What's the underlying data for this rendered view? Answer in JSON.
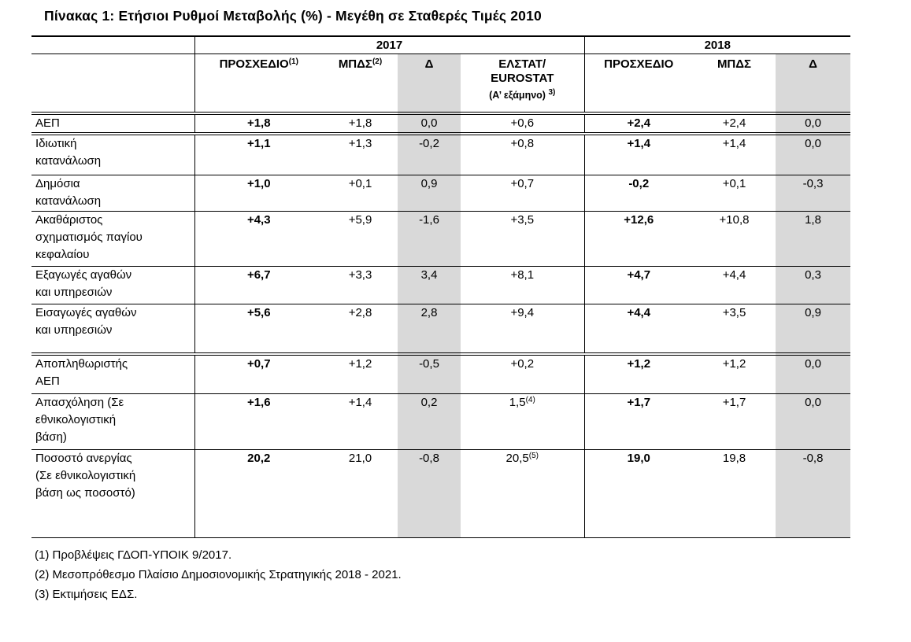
{
  "title": "Πίνακας 1: Ετήσιοι Ρυθμοί Μεταβολής (%) - Μεγέθη σε Σταθερές Τιμές 2010",
  "colors": {
    "shaded_column": "#d9d9d9",
    "border": "#000000",
    "background": "#ffffff"
  },
  "table": {
    "year_headers": [
      {
        "label": "2017",
        "span": 4
      },
      {
        "label": "2018",
        "span": 3
      }
    ],
    "column_headers": [
      {
        "label": "ΠΡΟΣΧΕΔΙΟ",
        "sup": "(1)",
        "emphasis": true
      },
      {
        "label": "ΜΠΔΣ",
        "sup": "(2)"
      },
      {
        "label": "Δ",
        "shaded": true
      },
      {
        "label": "ΕΛΣΤΑΤ/\nEUROSTAT",
        "sub_label": "(Α’ εξάμηνο)",
        "sub_sup": "3)"
      },
      {
        "label": "ΠΡΟΣΧΕΔΙΟ",
        "emphasis": true
      },
      {
        "label": "ΜΠΔΣ"
      },
      {
        "label": "Δ",
        "shaded": true
      }
    ],
    "rows": [
      {
        "label": "ΑΕΠ",
        "cells": [
          "+1,8",
          "+1,8",
          "0,0",
          "+0,6",
          "+2,4",
          "+2,4",
          "0,0"
        ]
      },
      {
        "label": "Ιδιωτική\nκατανάλωση",
        "cells": [
          "+1,1",
          "+1,3",
          "-0,2",
          "+0,8",
          "+1,4",
          "+1,4",
          "0,0"
        ]
      },
      {
        "label": "Δημόσια\nκατανάλωση",
        "cells": [
          "+1,0",
          "+0,1",
          "0,9",
          "+0,7",
          "-0,2",
          "+0,1",
          "-0,3"
        ]
      },
      {
        "label": "Ακαθάριστος\nσχηματισμός παγίου\nκεφαλαίου",
        "cells": [
          "+4,3",
          "+5,9",
          "-1,6",
          "+3,5",
          "+12,6",
          "+10,8",
          "1,8"
        ]
      },
      {
        "label": "Εξαγωγές αγαθών\nκαι υπηρεσιών",
        "cells": [
          "+6,7",
          "+3,3",
          "3,4",
          "+8,1",
          "+4,7",
          "+4,4",
          "0,3"
        ]
      },
      {
        "label": "Εισαγωγές αγαθών\nκαι υπηρεσιών",
        "cells": [
          "+5,6",
          "+2,8",
          "2,8",
          "+9,4",
          "+4,4",
          "+3,5",
          "0,9"
        ]
      },
      {
        "label": "Αποπληθωριστής\nΑΕΠ",
        "cells": [
          "+0,7",
          "+1,2",
          "-0,5",
          "+0,2",
          "+1,2",
          "+1,2",
          "0,0"
        ]
      },
      {
        "label": "Απασχόληση (Σε\nεθνικολογιστική\nβάση)",
        "cells": [
          "+1,6",
          "+1,4",
          "0,2",
          {
            "text": "1,5",
            "sup": "(4)"
          },
          "+1,7",
          "+1,7",
          "0,0"
        ]
      },
      {
        "label": "Ποσοστό ανεργίας\n(Σε εθνικολογιστική\nβάση ως ποσοστό)",
        "cells": [
          "20,2",
          "21,0",
          "-0,8",
          {
            "text": "20,5",
            "sup": "(5)"
          },
          "19,0",
          "19,8",
          "-0,8"
        ]
      }
    ]
  },
  "footnotes": [
    "(1) Προβλέψεις ΓΔΟΠ-ΥΠΟΙΚ 9/2017.",
    "(2) Μεσοπρόθεσμο Πλαίσιο Δημοσιονομικής Στρατηγικής 2018 - 2021.",
    "(3) Εκτιμήσεις ΕΔΣ."
  ]
}
